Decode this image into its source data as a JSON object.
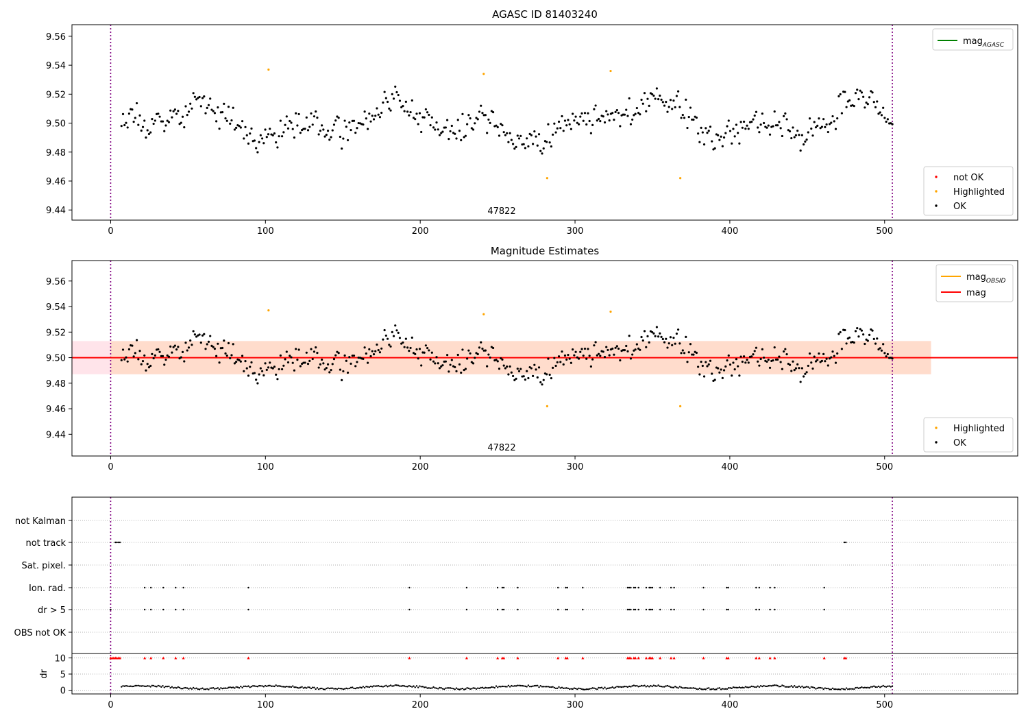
{
  "figure": {
    "top_title": "AGASC ID 81403240",
    "mid_title": "Magnitude Estimates"
  },
  "colors": {
    "ok": "#000000",
    "highlighted": "#ffa500",
    "not_ok": "#ff0000",
    "mag_agasc": "#008000",
    "mag_obsid": "#ffa500",
    "mag": "#ff0000",
    "obs_boundary": "#800080",
    "band_inner": "#ffdccc",
    "band_outer": "#ffe4ea"
  },
  "chart_data": [
    {
      "type": "scatter",
      "title": "AGASC ID 81403240",
      "xlim": [
        -25,
        586
      ],
      "ylim": [
        9.433,
        9.568
      ],
      "xticks": [
        0,
        100,
        200,
        300,
        400,
        500
      ],
      "yticks": [
        9.44,
        9.46,
        9.48,
        9.5,
        9.52,
        9.54,
        9.56
      ],
      "ytick_labels": [
        "9.44",
        "9.46",
        "9.48",
        "9.50",
        "9.52",
        "9.54",
        "9.56"
      ],
      "obsid_label": "47822",
      "obs_boundaries": [
        0,
        505
      ],
      "legend_lines": [
        {
          "name": "mag",
          "sub": "AGASC",
          "color": "#008000"
        }
      ],
      "legend_points": [
        {
          "name": "not OK",
          "color": "#ff0000"
        },
        {
          "name": "Highlighted",
          "color": "#ffa500"
        },
        {
          "name": "OK",
          "color": "#000000"
        }
      ],
      "highlighted": [
        [
          102,
          9.537
        ],
        [
          241,
          9.534
        ],
        [
          282,
          9.462
        ],
        [
          323,
          9.536
        ],
        [
          368,
          9.462
        ]
      ],
      "ok_series": {
        "n": 505,
        "x_start": 7,
        "x_end": 505,
        "mean": 9.5,
        "amplitude": 0.0155
      }
    },
    {
      "type": "scatter",
      "title": "Magnitude Estimates",
      "xlim": [
        -25,
        586
      ],
      "ylim": [
        9.423,
        9.576
      ],
      "xticks": [
        0,
        100,
        200,
        300,
        400,
        500
      ],
      "yticks": [
        9.44,
        9.46,
        9.48,
        9.5,
        9.52,
        9.54,
        9.56
      ],
      "ytick_labels": [
        "9.44",
        "9.46",
        "9.48",
        "9.50",
        "9.52",
        "9.54",
        "9.56"
      ],
      "obsid_label": "47822",
      "obs_boundaries": [
        0,
        505
      ],
      "mag": 9.5,
      "mag_band": [
        9.487,
        9.513
      ],
      "mag_band_x": [
        0,
        530
      ],
      "legend_lines": [
        {
          "name": "mag",
          "sub": "OBSID",
          "color": "#ffa500"
        },
        {
          "name": "mag",
          "sub": "",
          "color": "#ff0000"
        }
      ],
      "legend_points": [
        {
          "name": "Highlighted",
          "color": "#ffa500"
        },
        {
          "name": "OK",
          "color": "#000000"
        }
      ],
      "highlighted": [
        [
          102,
          9.537
        ],
        [
          241,
          9.534
        ],
        [
          282,
          9.462
        ],
        [
          323,
          9.536
        ],
        [
          368,
          9.462
        ]
      ]
    },
    {
      "type": "scatter",
      "title": "",
      "xlim": [
        -25,
        586
      ],
      "xticks": [
        0,
        100,
        200,
        300,
        400,
        500
      ],
      "flag_rows": [
        "not Kalman",
        "not track",
        "Sat. pixel.",
        "Ion. rad.",
        "dr > 5",
        "OBS not OK"
      ],
      "flags": {
        "not track": [
          3,
          4,
          5,
          6,
          474,
          475
        ],
        "Ion. rad.": [
          22,
          26,
          34,
          42,
          47,
          89,
          193,
          230,
          250,
          253,
          254,
          263,
          289,
          294,
          295,
          305,
          334,
          335,
          336,
          338,
          339,
          341,
          346,
          348,
          349,
          350,
          355,
          362,
          364,
          383,
          398,
          399,
          417,
          419,
          426,
          429,
          461
        ],
        "dr > 5": [
          0,
          22,
          26,
          34,
          42,
          47,
          89,
          193,
          230,
          250,
          253,
          254,
          263,
          289,
          294,
          295,
          305,
          334,
          335,
          336,
          338,
          339,
          341,
          346,
          348,
          349,
          350,
          355,
          362,
          364,
          383,
          398,
          399,
          417,
          419,
          426,
          429,
          461
        ]
      },
      "dr_ylabel": "dr",
      "dr_yticks": [
        0,
        5,
        10
      ],
      "dr_ylim": [
        -0.5,
        10.5
      ],
      "dr_clipped": [
        0,
        1,
        2,
        3,
        4,
        5,
        6,
        22,
        26,
        34,
        42,
        47,
        89,
        193,
        230,
        250,
        253,
        254,
        263,
        289,
        294,
        295,
        305,
        334,
        335,
        336,
        338,
        339,
        341,
        346,
        348,
        349,
        350,
        355,
        362,
        364,
        383,
        398,
        399,
        417,
        419,
        426,
        429,
        461,
        474,
        475
      ],
      "dr_series": {
        "n": 505,
        "x_start": 7,
        "x_end": 505,
        "mean": 0.9,
        "amplitude": 0.45
      }
    }
  ]
}
